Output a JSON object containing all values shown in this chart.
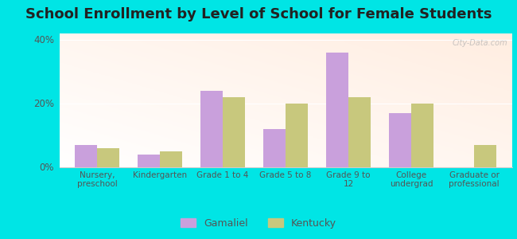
{
  "title": "School Enrollment by Level of School for Female Students",
  "categories": [
    "Nursery,\npreschool",
    "Kindergarten",
    "Grade 1 to 4",
    "Grade 5 to 8",
    "Grade 9 to\n12",
    "College\nundergrad",
    "Graduate or\nprofessional"
  ],
  "gamaliel": [
    7,
    4,
    24,
    12,
    36,
    17,
    0
  ],
  "kentucky": [
    6,
    5,
    22,
    20,
    22,
    20,
    7
  ],
  "gamaliel_color": "#c9a0dc",
  "kentucky_color": "#c8c87d",
  "background_outer": "#00e5e5",
  "title_fontsize": 13,
  "ylabel_ticks": [
    0,
    20,
    40
  ],
  "ylabel_labels": [
    "0%",
    "20%",
    "40%"
  ],
  "ylim": [
    0,
    42
  ],
  "bar_width": 0.35
}
